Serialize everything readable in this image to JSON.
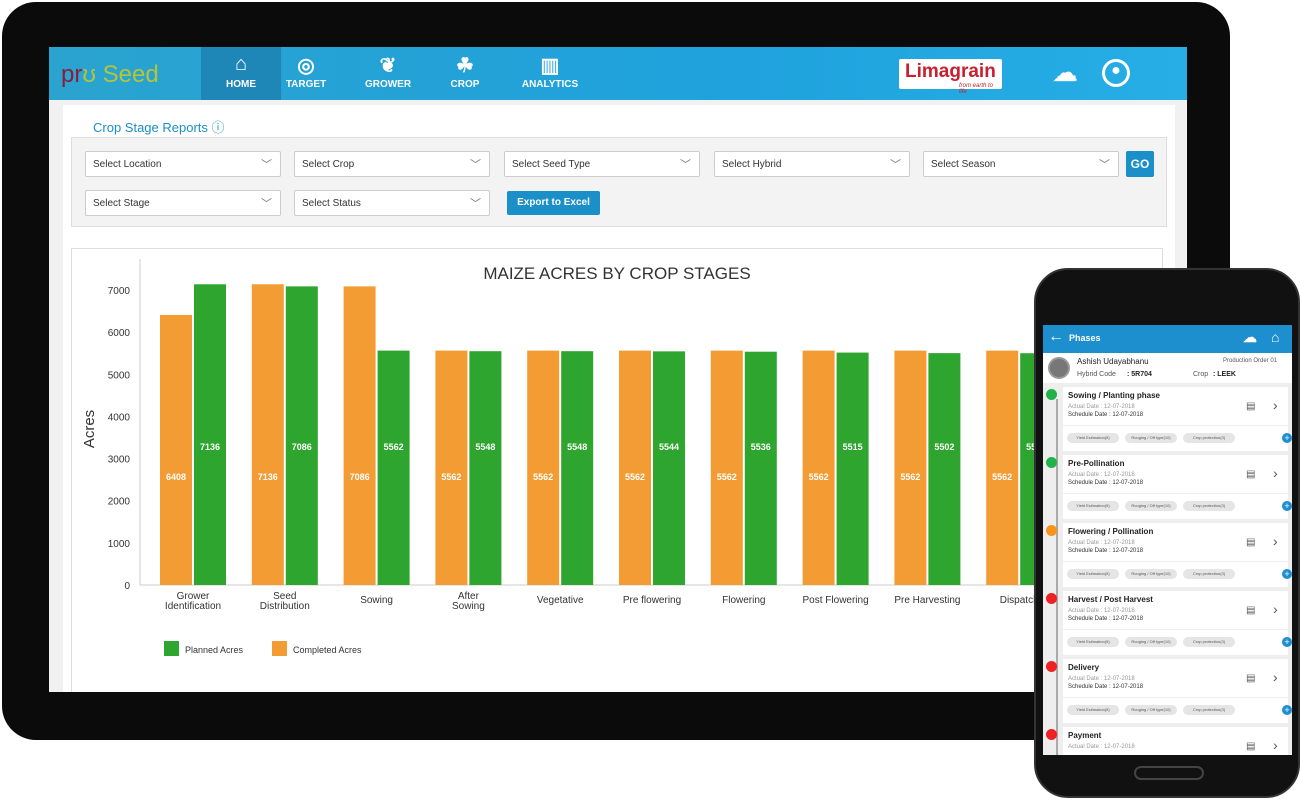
{
  "app": {
    "logo": "pro Seed",
    "brand": "Limagrain",
    "brand_tagline": "from earth to life"
  },
  "nav": [
    {
      "label": "HOME",
      "icon": "home-icon",
      "active": true
    },
    {
      "label": "TARGET",
      "icon": "target-icon"
    },
    {
      "label": "GROWER",
      "icon": "grower-icon"
    },
    {
      "label": "CROP",
      "icon": "crop-icon"
    },
    {
      "label": "ANALYTICS",
      "icon": "analytics-icon"
    }
  ],
  "page": {
    "title": "Crop Stage Reports",
    "info_icon": "info-icon"
  },
  "filters": {
    "location": "Select Location",
    "crop": "Select Crop",
    "seed_type": "Select Seed Type",
    "hybrid": "Select Hybrid",
    "season": "Select Season",
    "stage": "Select Stage",
    "status": "Select Status",
    "go": "GO",
    "export": "Export to Excel"
  },
  "chart_data": {
    "type": "bar",
    "title": "MAIZE ACRES BY CROP STAGES",
    "ylabel": "Acres",
    "ylim": [
      0,
      7500
    ],
    "yticks": [
      0,
      1000,
      2000,
      3000,
      4000,
      5000,
      6000,
      7000
    ],
    "grid": false,
    "legend": "bottom-left",
    "categories": [
      "Grower Identification",
      "Seed Distribution",
      "Sowing",
      "After Sowing",
      "Vegetative",
      "Pre flowering",
      "Flowering",
      "Post Flowering",
      "Pre Harvesting",
      "Dispatch"
    ],
    "series": [
      {
        "name": "Completed Acres",
        "color": "#f39c34",
        "values": [
          6408,
          7136,
          7086,
          5562,
          5562,
          5562,
          5562,
          5562,
          5562,
          5562
        ]
      },
      {
        "name": "Planned  Acres",
        "color": "#2ea52e",
        "values": [
          7136,
          7086,
          5562,
          5548,
          5548,
          5544,
          5536,
          5515,
          5502,
          5500
        ]
      }
    ]
  },
  "phone": {
    "title": "Phases",
    "user": "Ashish Udayabhanu",
    "order": "Production Order 01",
    "hybrid_label": "Hybrid Code",
    "hybrid": "5R704",
    "crop_label": "Crop",
    "crop": "LEEK",
    "tags": [
      "Yield Estimation(5)",
      "Rouging / Off type(10)",
      "Crop protection(3)"
    ],
    "phases": [
      {
        "name": "Sowing / Planting phase",
        "color": "#22b24c",
        "actual": "Actual Date    : 12-07-2018",
        "schedule": "Schedule Date : 12-07-2018"
      },
      {
        "name": "Pre-Pollination",
        "color": "#22b24c",
        "actual": "Actual Date    : 12-07-2018",
        "schedule": "Schedule Date : 12-07-2018"
      },
      {
        "name": "Flowering / Pollination",
        "color": "#f7941d",
        "actual": "Actual Date    : 12-07-2018",
        "schedule": "Schedule Date : 12-07-2018"
      },
      {
        "name": "Harvest / Post Harvest",
        "color": "#ee2222",
        "actual": "Actual Date    : 12-07-2018",
        "schedule": "Schedule Date : 12-07-2018"
      },
      {
        "name": "Delivery",
        "color": "#ee2222",
        "actual": "Actual Date    : 12-07-2018",
        "schedule": "Schedule Date : 12-07-2018"
      },
      {
        "name": "Payment",
        "color": "#ee2222",
        "actual": "Actual Date    : 12-07-2018",
        "schedule": ""
      }
    ]
  }
}
